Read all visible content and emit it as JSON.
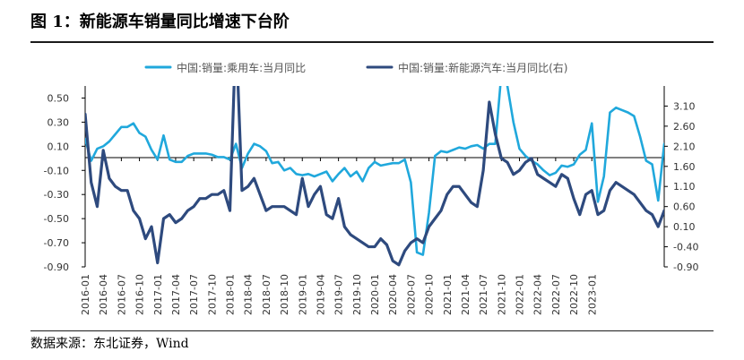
{
  "figure": {
    "title": "图 1：新能源车销量同比增速下台阶",
    "source_label": "数据来源：",
    "source_value": "东北证券，Wind"
  },
  "chart_data": {
    "type": "line",
    "legend": {
      "placement": "top",
      "entries": [
        "中国:销量:乘用车:当月同比",
        "中国:销量:新能源汽车:当月同比(右)"
      ]
    },
    "grid": false,
    "y_left": {
      "ticks": [
        0.5,
        0.3,
        0.1,
        -0.1,
        -0.3,
        -0.5,
        -0.7,
        -0.9
      ],
      "tick_labels": [
        "0.50",
        "0.30",
        "0.10",
        "-0.10",
        "-0.30",
        "-0.50",
        "-0.70",
        "-0.90"
      ],
      "range": [
        -0.9,
        0.6
      ]
    },
    "y_right": {
      "ticks": [
        3.1,
        2.6,
        2.1,
        1.6,
        1.1,
        0.6,
        0.1,
        -0.4,
        -0.9
      ],
      "tick_labels": [
        "3.10",
        "2.60",
        "2.10",
        "1.60",
        "1.10",
        "0.60",
        "0.10",
        "-0.40",
        "-0.90"
      ],
      "range": [
        -0.9,
        3.6
      ]
    },
    "x": {
      "tick_labels": [
        "2016-01",
        "2016-04",
        "2016-07",
        "2016-10",
        "2017-01",
        "2017-04",
        "2017-07",
        "2017-10",
        "2018-01",
        "2018-04",
        "2018-07",
        "2018-10",
        "2019-01",
        "2019-04",
        "2019-07",
        "2019-10",
        "2020-01",
        "2020-04",
        "2020-07",
        "2020-10",
        "2021-01",
        "2021-04",
        "2021-07",
        "2021-10",
        "2022-01",
        "2022-04",
        "2022-07",
        "2022-10",
        "2023-01"
      ],
      "start": "2016-01",
      "end": "2023-02"
    },
    "series": [
      {
        "name": "中国:销量:乘用车:当月同比",
        "axis": "left",
        "color": "#20a8dc",
        "values": [
          0.16,
          -0.02,
          0.08,
          0.1,
          0.14,
          0.2,
          0.26,
          0.26,
          0.29,
          0.21,
          0.18,
          0.07,
          -0.01,
          0.19,
          -0.01,
          -0.03,
          -0.03,
          0.02,
          0.04,
          0.04,
          0.04,
          0.03,
          0.01,
          0.01,
          -0.01,
          0.12,
          -0.08,
          0.04,
          0.12,
          0.1,
          0.06,
          -0.04,
          -0.03,
          -0.1,
          -0.08,
          -0.13,
          -0.14,
          -0.13,
          -0.15,
          -0.13,
          -0.11,
          -0.19,
          -0.13,
          -0.08,
          -0.15,
          -0.11,
          -0.19,
          -0.08,
          -0.03,
          -0.06,
          -0.05,
          -0.04,
          -0.04,
          -0.01,
          -0.2,
          -0.78,
          -0.8,
          -0.45,
          0.02,
          0.06,
          0.05,
          0.07,
          0.09,
          0.08,
          0.1,
          0.11,
          0.08,
          0.12,
          0.12,
          0.7,
          0.6,
          0.3,
          0.08,
          0.02,
          -0.02,
          -0.05,
          -0.1,
          -0.14,
          -0.12,
          -0.06,
          -0.07,
          -0.05,
          0.03,
          0.07,
          0.29,
          -0.36,
          -0.15,
          0.38,
          0.42,
          0.4,
          0.38,
          0.35,
          0.18,
          -0.02,
          -0.05,
          -0.35,
          0.12
        ],
        "notes": "2021-02 peak exceeds plotted range (off the top of the chart)"
      },
      {
        "name": "中国:销量:新能源汽车:当月同比(右)",
        "axis": "right",
        "color": "#2e4a7e",
        "values": [
          2.9,
          1.2,
          0.6,
          2.0,
          1.3,
          1.1,
          1.0,
          1.0,
          0.5,
          0.3,
          -0.2,
          0.1,
          -0.8,
          0.3,
          0.4,
          0.2,
          0.3,
          0.5,
          0.6,
          0.8,
          0.8,
          0.9,
          0.9,
          1.0,
          0.5,
          5.0,
          1.0,
          1.1,
          1.3,
          0.9,
          0.5,
          0.6,
          0.6,
          0.6,
          0.5,
          0.4,
          1.3,
          0.6,
          0.9,
          1.1,
          0.4,
          0.3,
          0.8,
          0.1,
          -0.1,
          -0.2,
          -0.3,
          -0.4,
          -0.4,
          -0.2,
          -0.35,
          -0.75,
          -0.85,
          -0.5,
          -0.3,
          -0.2,
          -0.3,
          0.1,
          0.3,
          0.5,
          0.9,
          1.1,
          1.1,
          0.9,
          0.7,
          0.6,
          1.5,
          3.2,
          2.4,
          1.8,
          1.7,
          1.4,
          1.5,
          1.7,
          1.8,
          1.4,
          1.3,
          1.2,
          1.1,
          1.4,
          1.3,
          0.8,
          0.4,
          0.9,
          1.0,
          0.4,
          0.5,
          1.0,
          1.2,
          1.1,
          1.0,
          0.9,
          0.7,
          0.5,
          0.4,
          0.1,
          0.5
        ],
        "notes": "2018-02 and 2021-02 spikes exceed plotted range (off the top of the chart)"
      }
    ]
  }
}
